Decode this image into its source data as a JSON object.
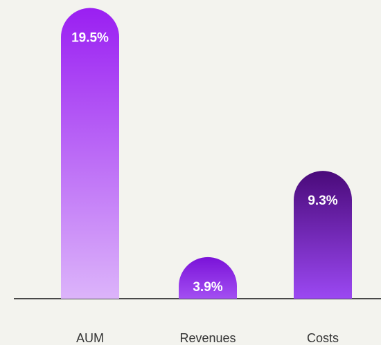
{
  "chart_data": {
    "type": "bar",
    "categories": [
      "AUM",
      "Revenues",
      "Costs"
    ],
    "values": [
      19.5,
      3.9,
      9.3
    ],
    "value_labels": [
      "19.5%",
      "3.9%",
      "9.3%"
    ],
    "colors": [
      [
        "#9a1ff2",
        "#dcb4fa"
      ],
      [
        "#7a12d8",
        "#a34ff2"
      ],
      [
        "#4a0a7a",
        "#9b48f2"
      ]
    ],
    "ylim": [
      1.3,
      20
    ]
  }
}
